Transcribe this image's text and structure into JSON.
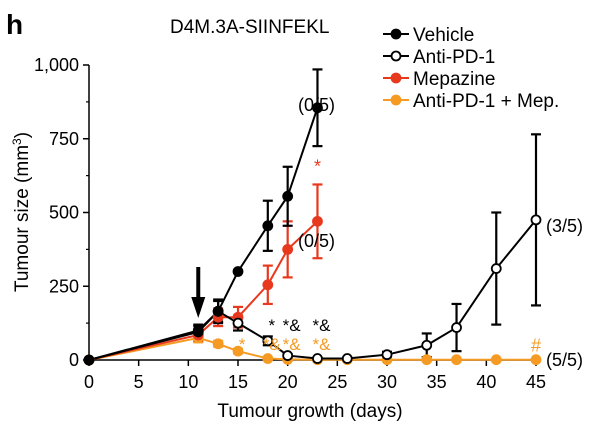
{
  "panel_letter": "h",
  "chart_data": {
    "type": "line",
    "title": "D4M.3A-SIINFEKL",
    "xlabel": "Tumour growth (days)",
    "ylabel": "Tumour size (mm",
    "ylabel_sup": "3",
    "ylabel_close": ")",
    "xlim": [
      0,
      45
    ],
    "ylim": [
      0,
      1000
    ],
    "xticks": [
      0,
      5,
      10,
      15,
      20,
      25,
      30,
      35,
      40,
      45
    ],
    "yticks": [
      0,
      250,
      500,
      750,
      1000
    ],
    "ytick_labels": [
      "0",
      "250",
      "500",
      "750",
      "1,000"
    ],
    "grid": false,
    "legend_position": "top-right",
    "treatment_arrow_day": 11,
    "series": [
      {
        "name": "Vehicle",
        "color": "#000000",
        "marker": "filled-circle",
        "points": [
          {
            "x": 0,
            "y": 0,
            "err": 0
          },
          {
            "x": 11,
            "y": 100,
            "err": 20
          },
          {
            "x": 13,
            "y": 165,
            "err": 40
          },
          {
            "x": 15,
            "y": 300,
            "err": 0
          },
          {
            "x": 18,
            "y": 455,
            "err": 85
          },
          {
            "x": 20,
            "y": 555,
            "err": 100
          },
          {
            "x": 23,
            "y": 855,
            "err": 130
          }
        ],
        "end_label": "(0/5)"
      },
      {
        "name": "Anti-PD-1",
        "color": "#000000",
        "marker": "open-circle",
        "points": [
          {
            "x": 0,
            "y": 0,
            "err": 0
          },
          {
            "x": 11,
            "y": 95,
            "err": 20
          },
          {
            "x": 13,
            "y": 165,
            "err": 35
          },
          {
            "x": 15,
            "y": 125,
            "err": 25
          },
          {
            "x": 18,
            "y": 65,
            "err": 15
          },
          {
            "x": 20,
            "y": 15,
            "err": 5
          },
          {
            "x": 23,
            "y": 5,
            "err": 3
          },
          {
            "x": 26,
            "y": 5,
            "err": 3
          },
          {
            "x": 30,
            "y": 18,
            "err": 10
          },
          {
            "x": 34,
            "y": 50,
            "err": 40
          },
          {
            "x": 37,
            "y": 110,
            "err": 80
          },
          {
            "x": 41,
            "y": 310,
            "err": 190
          },
          {
            "x": 45,
            "y": 475,
            "err": 290
          }
        ],
        "end_label": "(3/5)"
      },
      {
        "name": "Mepazine",
        "color": "#e8381d",
        "marker": "filled-circle",
        "points": [
          {
            "x": 0,
            "y": 0,
            "err": 0
          },
          {
            "x": 11,
            "y": 85,
            "err": 20
          },
          {
            "x": 13,
            "y": 145,
            "err": 30
          },
          {
            "x": 15,
            "y": 145,
            "err": 35
          },
          {
            "x": 18,
            "y": 255,
            "err": 65
          },
          {
            "x": 20,
            "y": 375,
            "err": 95
          },
          {
            "x": 23,
            "y": 470,
            "err": 125
          }
        ],
        "end_label": "(0/5)",
        "annotations": [
          {
            "x": 23,
            "text": "*"
          }
        ]
      },
      {
        "name": "Anti-PD-1 + Mep.",
        "color": "#f59a23",
        "marker": "filled-circle",
        "points": [
          {
            "x": 0,
            "y": 0,
            "err": 0
          },
          {
            "x": 11,
            "y": 75,
            "err": 15
          },
          {
            "x": 13,
            "y": 55,
            "err": 10
          },
          {
            "x": 15,
            "y": 30,
            "err": 8
          },
          {
            "x": 18,
            "y": 5,
            "err": 3
          },
          {
            "x": 20,
            "y": 2,
            "err": 0
          },
          {
            "x": 23,
            "y": 1,
            "err": 0
          },
          {
            "x": 26,
            "y": 1,
            "err": 0
          },
          {
            "x": 30,
            "y": 1,
            "err": 0
          },
          {
            "x": 34,
            "y": 1,
            "err": 0
          },
          {
            "x": 37,
            "y": 1,
            "err": 0
          },
          {
            "x": 41,
            "y": 1,
            "err": 0
          },
          {
            "x": 45,
            "y": 1,
            "err": 0
          }
        ],
        "end_label": "(5/5)",
        "annotations": [
          {
            "x": 45,
            "text": "#"
          }
        ]
      }
    ],
    "significance": [
      {
        "x": 15,
        "black": "",
        "orange": "*"
      },
      {
        "x": 18,
        "black": "*",
        "orange": "*&"
      },
      {
        "x": 20,
        "black": "*&",
        "orange": "*&"
      },
      {
        "x": 23,
        "black": "*&",
        "orange": "*&"
      }
    ]
  }
}
